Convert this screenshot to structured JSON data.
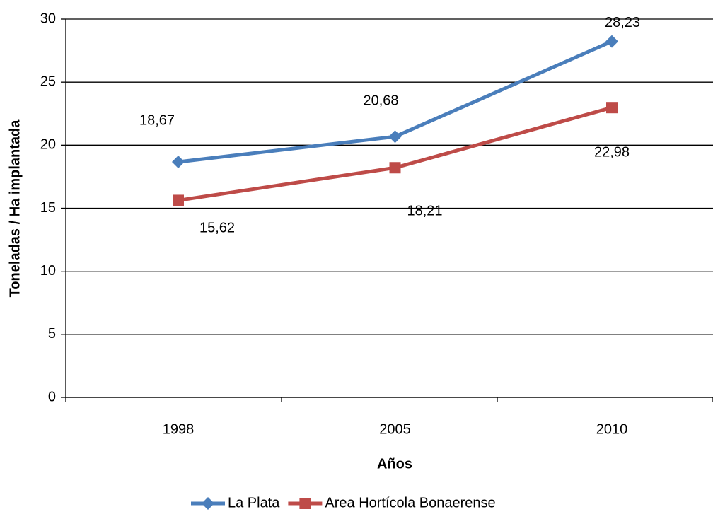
{
  "chart_data": {
    "type": "line",
    "x_label": "Años",
    "y_label": "Toneladas / Ha implantada",
    "categories": [
      "1998",
      "2005",
      "2010"
    ],
    "series": [
      {
        "name": "La Plata",
        "color": "#4a7ebb",
        "marker": "diamond",
        "values": [
          18.67,
          20.68,
          28.23
        ],
        "value_labels": [
          "18,67",
          "20,68",
          "28,23"
        ]
      },
      {
        "name": "Area Hortícola Bonaerense",
        "color": "#be4b48",
        "marker": "square",
        "values": [
          15.62,
          18.21,
          22.98
        ],
        "value_labels": [
          "15,62",
          "18,21",
          "22,98"
        ]
      }
    ],
    "ylim": [
      0,
      30
    ],
    "yticks": [
      0,
      5,
      10,
      15,
      20,
      25,
      30
    ],
    "grid": true,
    "legend": "bottom"
  }
}
